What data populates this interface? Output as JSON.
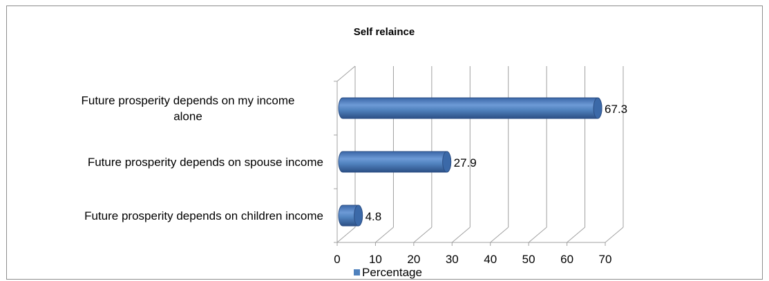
{
  "chart_data": {
    "type": "bar",
    "orientation": "horizontal",
    "title": "Self relaince",
    "categories": [
      "Future prosperity depends on my income alone",
      "Future prosperity depends on spouse income",
      "Future prosperity depends on children income"
    ],
    "category_lines": [
      [
        "Future prosperity depends on my income",
        "alone"
      ],
      [
        "Future prosperity depends on spouse income"
      ],
      [
        "Future prosperity depends on children income"
      ]
    ],
    "series": [
      {
        "name": "Percentage",
        "values": [
          67.3,
          27.9,
          4.8
        ],
        "color": "#4f81bd"
      }
    ],
    "data_labels": [
      "67.3",
      "27.9",
      "4.8"
    ],
    "xlim": [
      0,
      70
    ],
    "xticks": [
      "0",
      "10",
      "20",
      "30",
      "40",
      "50",
      "60",
      "70"
    ],
    "grid": true,
    "legend_position": "bottom",
    "style": "3d-cylinder"
  }
}
